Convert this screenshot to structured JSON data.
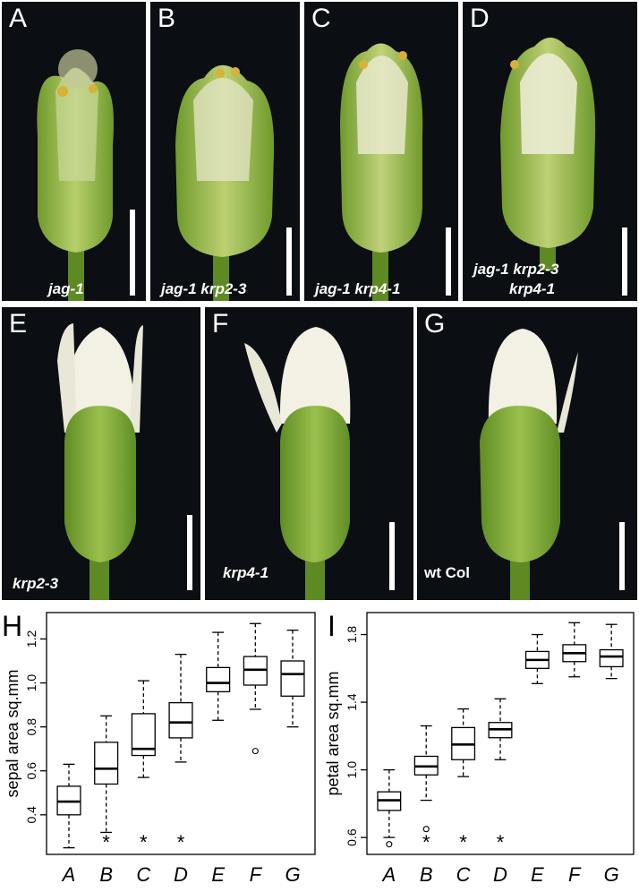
{
  "panels": [
    {
      "label": "A",
      "genotype_line1": "jag-1",
      "genotype_line2": "",
      "italic": true
    },
    {
      "label": "B",
      "genotype_line1": "jag-1 krp2-3",
      "genotype_line2": "",
      "italic": true
    },
    {
      "label": "C",
      "genotype_line1": "jag-1 krp4-1",
      "genotype_line2": "",
      "italic": true
    },
    {
      "label": "D",
      "genotype_line1": "jag-1 krp2-3",
      "genotype_line2": "krp4-1",
      "italic": true
    },
    {
      "label": "E",
      "genotype_line1": "krp2-3",
      "genotype_line2": "",
      "italic": true
    },
    {
      "label": "F",
      "genotype_line1": "krp4-1",
      "genotype_line2": "",
      "italic": true
    },
    {
      "label": "G",
      "genotype_line1": "wt Col",
      "genotype_line2": "",
      "italic": false
    }
  ],
  "chart_labels": {
    "H": "H",
    "I": "I"
  },
  "chart_data": [
    {
      "type": "boxplot",
      "panel": "H",
      "title": "",
      "xlabel": "",
      "ylabel": "sepal area sq.mm",
      "categories": [
        "A",
        "B",
        "C",
        "D",
        "E",
        "F",
        "G"
      ],
      "ylim": [
        0.22,
        1.32
      ],
      "yticks": [
        0.4,
        0.6,
        0.8,
        1.0,
        1.2
      ],
      "ytick_labels": [
        "0.4",
        "0.6",
        "0.8",
        "1.0",
        "1.2"
      ],
      "boxes": [
        {
          "min": 0.25,
          "q1": 0.4,
          "median": 0.46,
          "q3": 0.53,
          "max": 0.63,
          "outliers": []
        },
        {
          "min": 0.32,
          "q1": 0.54,
          "median": 0.61,
          "q3": 0.73,
          "max": 0.85,
          "outliers": []
        },
        {
          "min": 0.57,
          "q1": 0.67,
          "median": 0.7,
          "q3": 0.86,
          "max": 1.01,
          "outliers": []
        },
        {
          "min": 0.64,
          "q1": 0.75,
          "median": 0.82,
          "q3": 0.91,
          "max": 1.13,
          "outliers": []
        },
        {
          "min": 0.83,
          "q1": 0.96,
          "median": 1.0,
          "q3": 1.07,
          "max": 1.23,
          "outliers": []
        },
        {
          "min": 0.88,
          "q1": 0.99,
          "median": 1.06,
          "q3": 1.12,
          "max": 1.27,
          "outliers": [
            0.69
          ]
        },
        {
          "min": 0.8,
          "q1": 0.94,
          "median": 1.04,
          "q3": 1.1,
          "max": 1.24,
          "outliers": []
        }
      ],
      "significance": [
        "",
        "*",
        "*",
        "*",
        "",
        "",
        ""
      ]
    },
    {
      "type": "boxplot",
      "panel": "I",
      "title": "",
      "xlabel": "",
      "ylabel": "petal area sq.mm",
      "categories": [
        "A",
        "B",
        "C",
        "D",
        "E",
        "F",
        "G"
      ],
      "ylim": [
        0.5,
        1.93
      ],
      "yticks": [
        0.6,
        1.0,
        1.4,
        1.8
      ],
      "ytick_labels": [
        "0.6",
        "1.0",
        "1.4",
        "1.8"
      ],
      "boxes": [
        {
          "min": 0.6,
          "q1": 0.76,
          "median": 0.82,
          "q3": 0.87,
          "max": 1.0,
          "outliers": [
            0.56
          ]
        },
        {
          "min": 0.82,
          "q1": 0.97,
          "median": 1.02,
          "q3": 1.08,
          "max": 1.26,
          "outliers": [
            0.65
          ]
        },
        {
          "min": 0.96,
          "q1": 1.06,
          "median": 1.15,
          "q3": 1.25,
          "max": 1.36,
          "outliers": []
        },
        {
          "min": 1.06,
          "q1": 1.19,
          "median": 1.24,
          "q3": 1.28,
          "max": 1.42,
          "outliers": []
        },
        {
          "min": 1.51,
          "q1": 1.6,
          "median": 1.65,
          "q3": 1.7,
          "max": 1.8,
          "outliers": []
        },
        {
          "min": 1.55,
          "q1": 1.64,
          "median": 1.69,
          "q3": 1.74,
          "max": 1.87,
          "outliers": []
        },
        {
          "min": 1.54,
          "q1": 1.61,
          "median": 1.67,
          "q3": 1.71,
          "max": 1.86,
          "outliers": []
        }
      ],
      "significance": [
        "",
        "*",
        "*",
        "*",
        "",
        "",
        ""
      ]
    }
  ],
  "colors": {
    "background": "#0b0e12",
    "sepal_green": "#7fa636",
    "petal_white": "#f2f1e4",
    "anther": "#d9b13a"
  }
}
